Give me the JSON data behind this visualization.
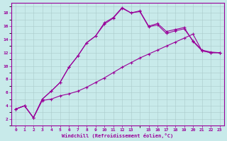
{
  "background_color": "#c8eaea",
  "grid_color": "#aacaca",
  "line_color": "#990099",
  "xlim": [
    -0.5,
    23.5
  ],
  "ylim": [
    1.5,
    19.5
  ],
  "xlabel": "Windchill (Refroidissement éolien,°C)",
  "xticks": [
    0,
    1,
    2,
    3,
    4,
    5,
    6,
    7,
    8,
    9,
    10,
    11,
    12,
    13,
    15,
    16,
    17,
    18,
    19,
    20,
    21,
    22,
    23
  ],
  "yticks": [
    2,
    4,
    6,
    8,
    10,
    12,
    14,
    16,
    18
  ],
  "line1_x": [
    0,
    1,
    2,
    3,
    4,
    5,
    6,
    7,
    8,
    9,
    10,
    11,
    12,
    13,
    14,
    15,
    16,
    17,
    18,
    19,
    20,
    21,
    22,
    23
  ],
  "line1_y": [
    3.5,
    4.0,
    2.2,
    5.0,
    6.2,
    7.5,
    9.8,
    11.5,
    13.5,
    14.5,
    16.5,
    17.3,
    18.8,
    18.0,
    18.3,
    16.0,
    16.4,
    15.2,
    15.5,
    15.8,
    13.7,
    12.3,
    12.0,
    12.0
  ],
  "line2_x": [
    0,
    1,
    2,
    3,
    4,
    5,
    6,
    7,
    8,
    9,
    10,
    11,
    12,
    13,
    14,
    15,
    16,
    17,
    18,
    19,
    20,
    21,
    22,
    23
  ],
  "line2_y": [
    3.5,
    4.0,
    2.2,
    5.0,
    6.2,
    7.5,
    9.8,
    11.5,
    13.5,
    14.5,
    16.3,
    17.2,
    18.7,
    18.0,
    18.2,
    15.9,
    16.2,
    14.9,
    15.3,
    15.6,
    13.8,
    12.4,
    12.1,
    12.0
  ],
  "line3_x": [
    0,
    1,
    2,
    3,
    4,
    5,
    6,
    7,
    8,
    9,
    10,
    11,
    12,
    13,
    14,
    15,
    16,
    17,
    18,
    19,
    20,
    21,
    22,
    23
  ],
  "line3_y": [
    3.5,
    4.0,
    2.2,
    4.8,
    5.0,
    5.5,
    5.8,
    6.2,
    6.8,
    7.5,
    8.2,
    9.0,
    9.8,
    10.5,
    11.2,
    11.8,
    12.4,
    13.0,
    13.6,
    14.2,
    14.8,
    12.3,
    12.0,
    12.0
  ]
}
